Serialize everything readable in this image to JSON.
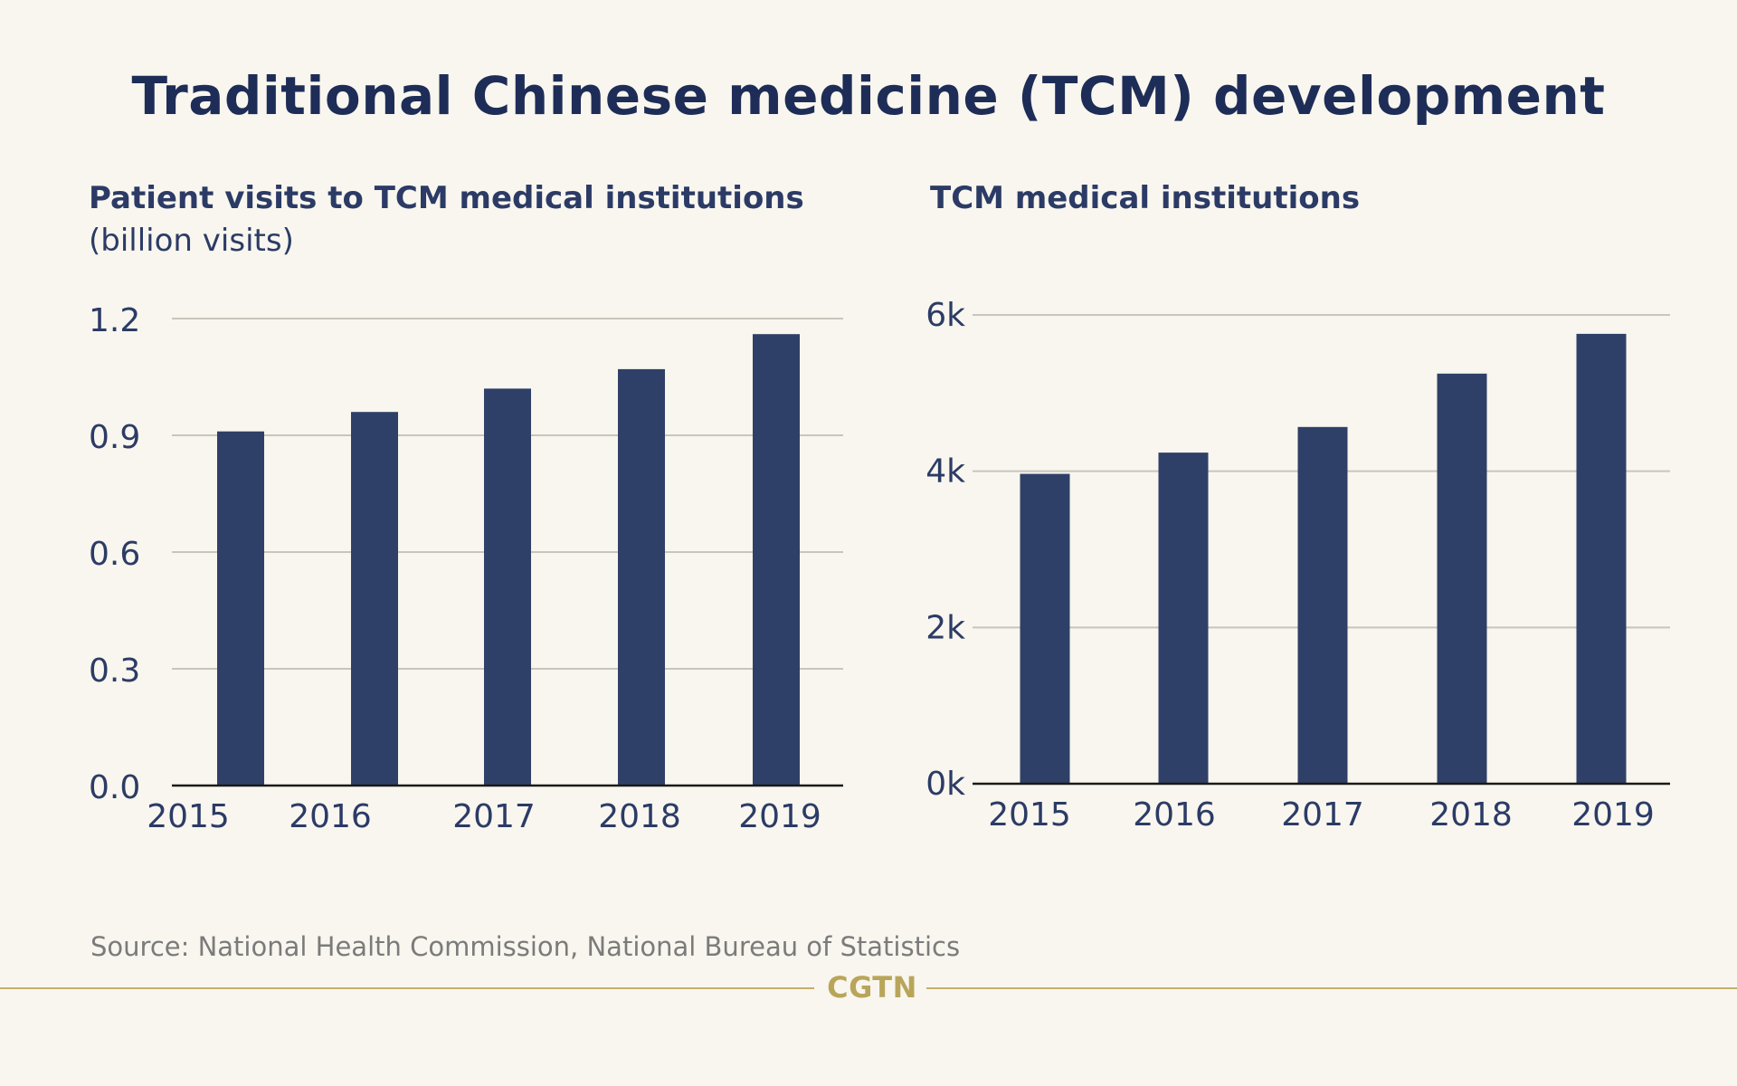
{
  "title": "Traditional Chinese medicine (TCM) development",
  "source": "Source: National Health Commission, National Bureau of Statistics",
  "logo_text": "CGTN",
  "colors": {
    "bar": "#2f4068",
    "grid": "#c8c5bc",
    "axis": "#1a1a1a",
    "text": "#2c3b66",
    "background": "#f8f6ee",
    "brand": "#b9a55a"
  },
  "chart_data": [
    {
      "type": "bar",
      "title": "Patient visits to TCM medical institutions",
      "subtitle": "(billion visits)",
      "categories": [
        "2015",
        "2016",
        "2017",
        "2018",
        "2019"
      ],
      "values": [
        0.91,
        0.96,
        1.02,
        1.07,
        1.16
      ],
      "yticks": [
        "0.0",
        "0.3",
        "0.6",
        "0.9",
        "1.2"
      ],
      "ylim": [
        0,
        1.2
      ],
      "grid": true
    },
    {
      "type": "bar",
      "title": "TCM medical institutions",
      "subtitle": "",
      "categories": [
        "2015",
        "2016",
        "2017",
        "2018",
        "2019"
      ],
      "values": [
        3966,
        4238,
        4566,
        5249,
        5758
      ],
      "yticks": [
        "0k",
        "2k",
        "4k",
        "6k"
      ],
      "ylim": [
        0,
        6000
      ],
      "grid": true
    }
  ]
}
